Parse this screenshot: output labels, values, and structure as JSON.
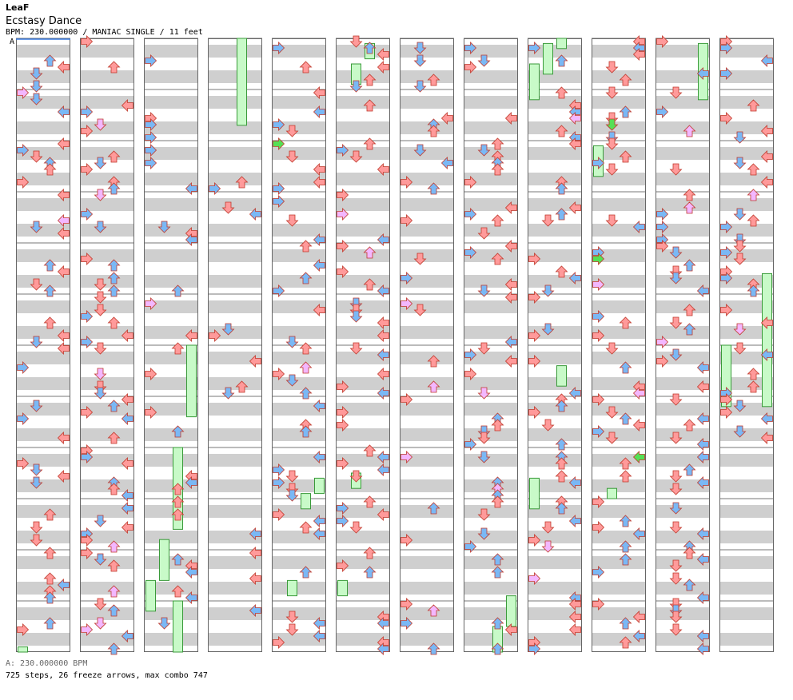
{
  "song": {
    "artist": "LeaF",
    "title": "Ecstasy Dance",
    "meta": "BPM: 230.000000 / MANIAC SINGLE / 11 feet",
    "bpm_marker": "A"
  },
  "footer": {
    "bpm_line": "A: 230.000000 BPM",
    "stats": "725 steps, 26 freeze arrows, max combo 747"
  },
  "chart_data": {
    "type": "step-chart",
    "columns": 12,
    "measures_per_column": 12,
    "lanes": [
      "left",
      "down",
      "up",
      "right"
    ],
    "steps": 725,
    "freeze_arrows": 26,
    "max_combo": 747,
    "bpm": 230,
    "colors": {
      "quarter": "#ff9a9a",
      "eighth": "#7ab8f5",
      "sixteenth": "#f3b7ff",
      "other": "#55e055",
      "freeze": "#c8fac8",
      "stripe": "#cfcfcf"
    },
    "freezes": [
      {
        "col": 2,
        "lane": 3,
        "start": 6.0,
        "end": 7.4
      },
      {
        "col": 2,
        "lane": 2,
        "start": 8.0,
        "end": 9.6
      },
      {
        "col": 2,
        "lane": 1,
        "start": 9.8,
        "end": 10.6
      },
      {
        "col": 2,
        "lane": 0,
        "start": 10.6,
        "end": 11.2
      },
      {
        "col": 2,
        "lane": 2,
        "start": 11.0,
        "end": 12.0
      },
      {
        "col": 3,
        "lane": 2,
        "start": 0.0,
        "end": 1.7
      },
      {
        "col": 4,
        "lane": 2,
        "start": 8.9,
        "end": 9.2
      },
      {
        "col": 4,
        "lane": 3,
        "start": 8.6,
        "end": 8.9
      },
      {
        "col": 4,
        "lane": 1,
        "start": 10.6,
        "end": 10.9
      },
      {
        "col": 5,
        "lane": 2,
        "start": 0.1,
        "end": 0.4
      },
      {
        "col": 5,
        "lane": 1,
        "start": 0.5,
        "end": 0.9
      },
      {
        "col": 5,
        "lane": 1,
        "start": 8.5,
        "end": 8.8
      },
      {
        "col": 5,
        "lane": 0,
        "start": 10.6,
        "end": 10.9
      },
      {
        "col": 7,
        "lane": 2,
        "start": 11.5,
        "end": 12.0
      },
      {
        "col": 7,
        "lane": 3,
        "start": 10.9,
        "end": 11.5
      },
      {
        "col": 8,
        "lane": 2,
        "start": 0.0,
        "end": 0.2
      },
      {
        "col": 8,
        "lane": 1,
        "start": 0.1,
        "end": 0.7
      },
      {
        "col": 8,
        "lane": 0,
        "start": 0.5,
        "end": 1.2
      },
      {
        "col": 8,
        "lane": 0,
        "start": 8.6,
        "end": 9.2
      },
      {
        "col": 8,
        "lane": 2,
        "start": 6.4,
        "end": 6.8
      },
      {
        "col": 9,
        "lane": 0,
        "start": 2.1,
        "end": 2.7
      },
      {
        "col": 9,
        "lane": 1,
        "start": 8.8,
        "end": 9.0
      },
      {
        "col": 10,
        "lane": 3,
        "start": 0.1,
        "end": 1.2
      },
      {
        "col": 11,
        "lane": 3,
        "start": 4.6,
        "end": 7.2
      },
      {
        "col": 11,
        "lane": 0,
        "start": 6.0,
        "end": 7.2
      },
      {
        "col": 0,
        "lane": 0,
        "start": 11.9,
        "end": 12.0
      }
    ]
  }
}
